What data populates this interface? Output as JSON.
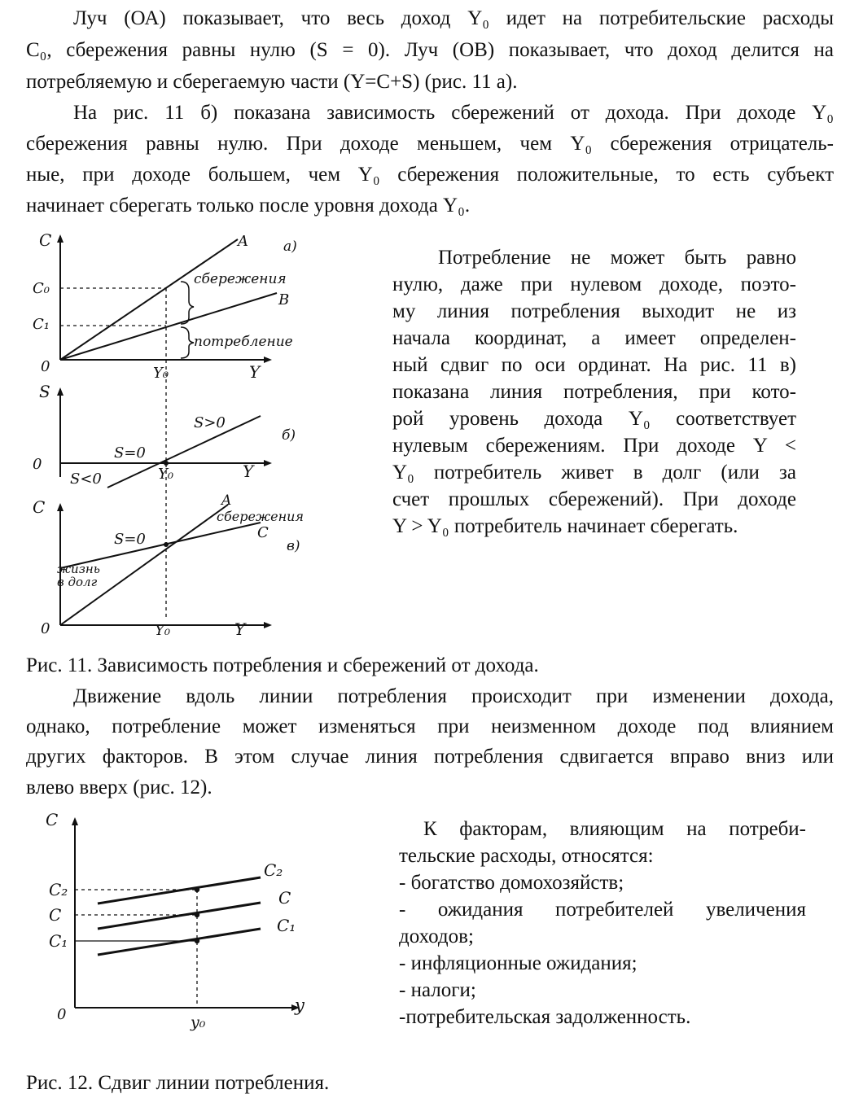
{
  "intro": {
    "l1": "Луч (ОА) показывает, что весь доход Y₀ идет на потребительские расходы",
    "l2": "C₀, сбережения равны нулю (S = 0). Луч (ОВ) показывает, что доход делится на",
    "l3": "потребляемую и сберегаемую части (Y=C+S) (рис. 11 а).",
    "l4": "На рис. 11 б) показана зависимость сбережений от дохода. При доходе Y₀",
    "l5": "сбережения равны нулю. При доходе меньшем, чем Y₀ сбережения отрицатель-",
    "l6": "ные, при доходе большем, чем Y₀ сбережения положительные, то есть субъект",
    "l7": "начинает сберегать только после уровня дохода Y₀."
  },
  "fig11": {
    "a": {
      "c": "C",
      "c0": "C₀",
      "c1": "C₁",
      "zero": "0",
      "y0": "Y₀",
      "y": "Y",
      "A": "A",
      "B": "B",
      "savings": "сбережения",
      "consumption": "потребление",
      "tag": "а)"
    },
    "b": {
      "s": "S",
      "zero": "0",
      "y0": "Y₀",
      "y": "Y",
      "s_pos": "S>0",
      "s_zero": "S=0",
      "s_neg": "S<0",
      "tag": "б)"
    },
    "c": {
      "c": "C",
      "zero": "0",
      "y0": "Y₀",
      "y": "Y",
      "A": "A",
      "C": "C",
      "savings": "сбережения",
      "s_zero": "S=0",
      "debt1": "жизнь",
      "debt2": "в долг",
      "tag": "в)"
    }
  },
  "side1": {
    "l1": "Потребление не может быть равно",
    "l2": "нулю, даже при нулевом доходе, поэто-",
    "l3": "му линия потребления выходит не из",
    "l4": "начала координат, а имеет определен-",
    "l5": "ный сдвиг по оси ординат. На рис. 11 в)",
    "l6": "показана линия потребления, при кото-",
    "l7": "рой уровень дохода Y₀ соответствует",
    "l8": "нулевым сбережениям. При доходе Y <",
    "l9": "Y₀ потребитель живет в долг (или за",
    "l10": "счет прошлых сбережений). При доходе",
    "l11": "Y > Y₀ потребитель начинает сберегать."
  },
  "caption11": "Рис. 11. Зависимость потребления и сбережений от дохода.",
  "mid": {
    "l1": "Движение вдоль линии потребления происходит при изменении дохода,",
    "l2": "однако, потребление может изменяться при неизменном доходе под влиянием",
    "l3": "других факторов. В этом случае линия потребления сдвигается вправо вниз или",
    "l4": "влево вверх (рис. 12)."
  },
  "fig12": {
    "c": "C",
    "c2": "C₂",
    "cc": "C",
    "c1": "C₁",
    "zero": "0",
    "y0": "y₀",
    "y": "y",
    "lc2": "C₂",
    "lc": "C",
    "lc1": "C₁"
  },
  "side2": {
    "l1": "К факторам, влияющим на потреби-",
    "l2": "тельские расходы, относятся:",
    "l3": "- богатство домохозяйств;",
    "l4": "- ожидания потребителей увеличения",
    "l5": "доходов;",
    "l6": "- инфляционные ожидания;",
    "l7": "- налоги;",
    "l8": "-потребительская задолженность."
  },
  "caption12": "Рис. 12. Сдвиг линии потребления."
}
